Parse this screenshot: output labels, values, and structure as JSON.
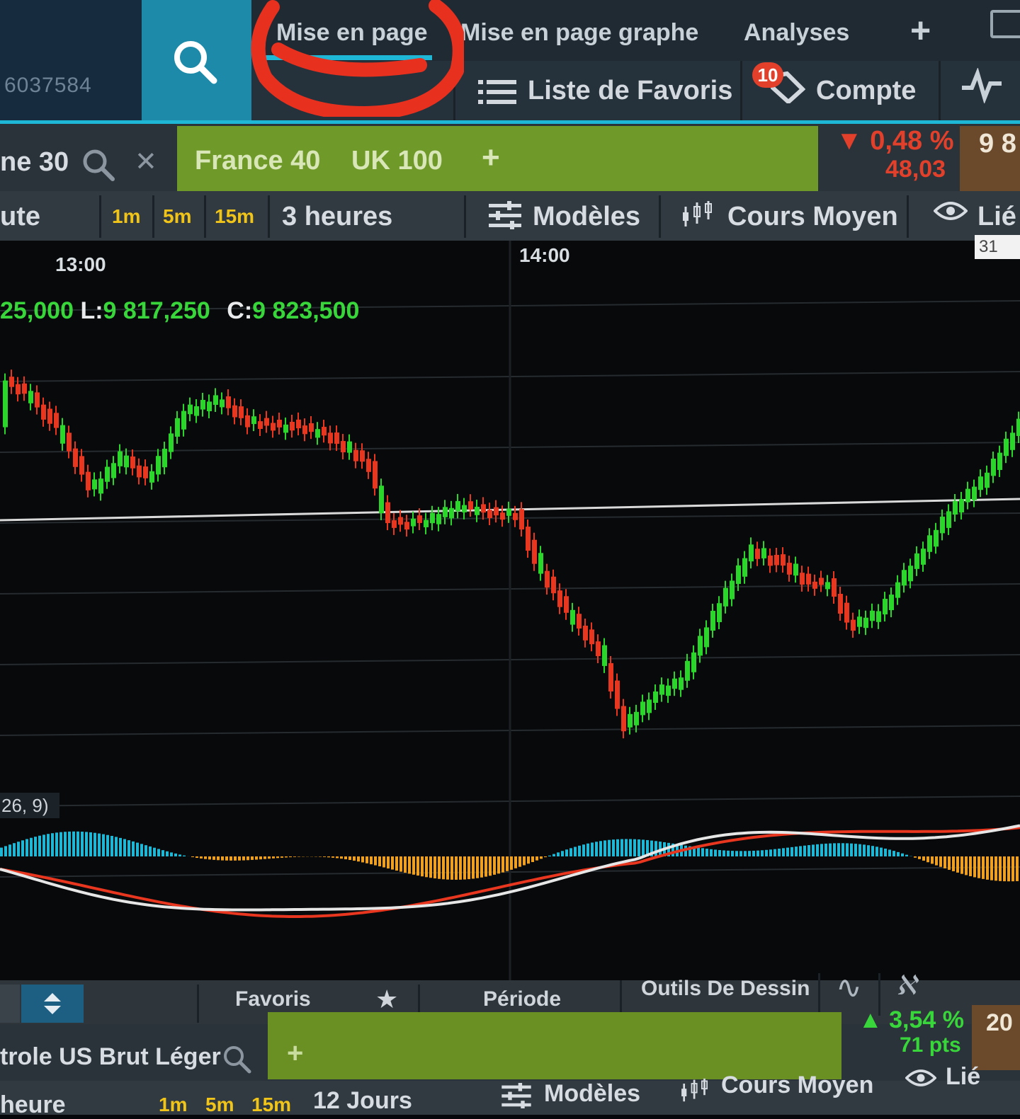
{
  "account": {
    "id": "6037584"
  },
  "top_tabs": {
    "layout": "Mise en page",
    "chart_layout": "Mise en page graphe",
    "analyses": "Analyses",
    "add": "+"
  },
  "secondary_nav": {
    "favorites_list": "Liste de Favoris",
    "account": "Compte",
    "badge_count": "10"
  },
  "instrument": {
    "name": "ne 30",
    "tabs": [
      "France 40",
      "UK 100"
    ],
    "add": "+",
    "change_pct": "0,48 %",
    "change_pts": "48,03",
    "direction": "down",
    "price": "9 8"
  },
  "timeframe_bar": {
    "label": "ute",
    "intervals": [
      "1m",
      "5m",
      "15m"
    ],
    "range": "3 heures",
    "models": "Modèles",
    "avg_price": "Cours Moyen",
    "linked": "Lié"
  },
  "chart": {
    "time_labels": [
      "13:00",
      "14:00"
    ],
    "date_tag": "31",
    "ohlc": {
      "high_tail": "25,000",
      "low_key": "L:",
      "low": "9 817,250",
      "close_key": "C:",
      "close": "9 823,500"
    },
    "macd_label": "26, 9)",
    "colors": {
      "up": "#2bd62a",
      "down": "#e8361f",
      "macd_pos": "#1fb7d6",
      "macd_neg": "#f0a020"
    }
  },
  "bottom_toolbar": {
    "favorites": "Favoris",
    "period": "Période",
    "drawing_tools": "Outils De Dessin"
  },
  "instrument2": {
    "name": "trole US Brut Léger",
    "add": "+",
    "change_pct": "3,54 %",
    "change_pts": "71 pts",
    "direction": "up",
    "price": "20"
  },
  "timeframe_bar2": {
    "label": "heure",
    "intervals": [
      "1m",
      "5m",
      "15m"
    ],
    "range": "12 Jours",
    "models": "Modèles",
    "avg_price": "Cours Moyen",
    "linked": "Lié"
  }
}
